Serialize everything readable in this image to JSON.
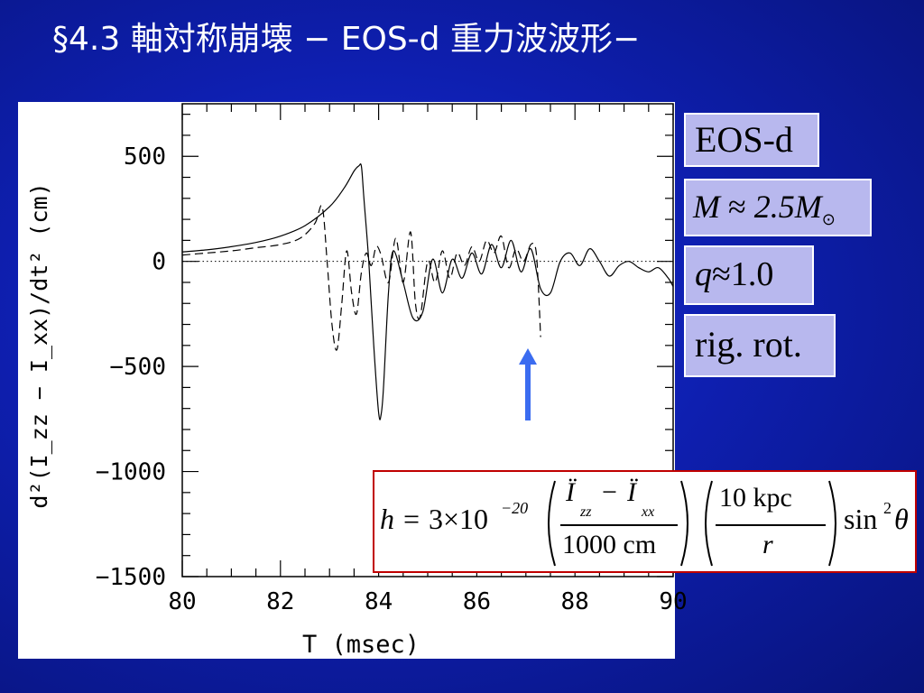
{
  "slide": {
    "title": "§4.3  軸対称崩壊 − EOS-d 重力波波形−"
  },
  "labels": {
    "eos": "EOS-d",
    "mass_sym": "M",
    "mass_approx": "≈",
    "mass_value": "2.5M",
    "mass_sub": "⊙",
    "q_sym": "q",
    "q_value": "≈1.0",
    "rotation": "rig. rot."
  },
  "formula": {
    "lhs": "h",
    "eq": "=",
    "coef": "3×10",
    "coef_exp": "−20",
    "num1": "Ï",
    "num1_sub": "zz",
    "minus": "−",
    "num2": "Ï",
    "num2_sub": "xx",
    "den1": "1000 cm",
    "num3": "10 kpc",
    "den3": "r",
    "trig": "sin",
    "trig_exp": "2",
    "theta": "θ"
  },
  "colors": {
    "background": "#0e1fb0",
    "label_box": "#b8b8ee",
    "formula_border": "#c00000",
    "arrow": "#3b6cf0"
  },
  "annotation": {
    "type": "arrow-up",
    "icon": "arrow-up-icon",
    "x": 87.3
  },
  "chart_data": {
    "type": "line",
    "title": "",
    "xlabel": "T (msec)",
    "ylabel": "d²(I_zz − I_xx)/dt² (cm)",
    "xlim": [
      80,
      90
    ],
    "ylim": [
      -1500,
      750
    ],
    "xticks": [
      80,
      82,
      84,
      86,
      88,
      90
    ],
    "yticks": [
      500,
      0,
      -500,
      -1000,
      -1500
    ],
    "xtick_labels": [
      "80",
      "82",
      "84",
      "86",
      "88",
      "90"
    ],
    "ytick_labels": [
      "500",
      "0",
      "−500",
      "−1000",
      "−1500"
    ],
    "zero_line": {
      "style": "dotted",
      "y": 0
    },
    "series": [
      {
        "style": "solid",
        "x": [
          80.0,
          80.5,
          81.0,
          81.5,
          82.0,
          82.5,
          83.0,
          83.3,
          83.5,
          83.6,
          83.65,
          83.7,
          83.8,
          83.9,
          84.0,
          84.05,
          84.1,
          84.2,
          84.3,
          84.5,
          84.7,
          84.9,
          85.1,
          85.3,
          85.5,
          85.7,
          85.9,
          86.1,
          86.3,
          86.5,
          86.7,
          86.9,
          87.1,
          87.3,
          87.5,
          87.7,
          87.9,
          88.1,
          88.3,
          88.5,
          88.7,
          88.9,
          89.1,
          89.3,
          89.5,
          89.7,
          89.9,
          90.0
        ],
        "y": [
          45,
          55,
          70,
          90,
          120,
          170,
          260,
          350,
          430,
          455,
          450,
          300,
          0,
          -400,
          -720,
          -730,
          -600,
          -150,
          50,
          -100,
          -270,
          -240,
          10,
          -150,
          10,
          -80,
          40,
          -60,
          80,
          -30,
          100,
          -50,
          60,
          -130,
          -150,
          0,
          40,
          -20,
          60,
          0,
          -70,
          -20,
          0,
          -30,
          -50,
          -30,
          -80,
          -120
        ]
      },
      {
        "style": "dashed",
        "x": [
          80.0,
          80.5,
          81.0,
          81.5,
          82.0,
          82.4,
          82.7,
          82.85,
          82.95,
          83.05,
          83.15,
          83.25,
          83.35,
          83.45,
          83.55,
          83.65,
          83.75,
          83.85,
          83.95,
          84.05,
          84.2,
          84.35,
          84.5,
          84.65,
          84.75,
          84.85,
          85.0,
          85.15,
          85.3,
          85.45,
          85.6,
          85.75,
          85.9,
          86.05,
          86.2,
          86.35,
          86.5,
          86.65,
          86.8,
          86.95,
          87.1,
          87.2,
          87.25,
          87.3
        ],
        "y": [
          30,
          40,
          50,
          65,
          80,
          110,
          180,
          260,
          0,
          -300,
          -420,
          -200,
          50,
          -150,
          -250,
          -50,
          40,
          -20,
          70,
          30,
          -100,
          110,
          -100,
          140,
          -200,
          -260,
          0,
          -100,
          50,
          -80,
          40,
          -20,
          70,
          0,
          100,
          40,
          120,
          -30,
          60,
          0,
          80,
          60,
          -100,
          -360
        ]
      }
    ]
  }
}
